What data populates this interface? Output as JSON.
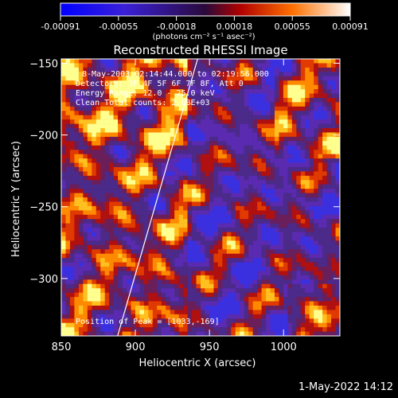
{
  "chart_data": {
    "type": "heatmap",
    "title": "Reconstructed RHESSI Image",
    "xlabel": "Heliocentric X (arcsec)",
    "ylabel": "Heliocentric Y (arcsec)",
    "xlim": [
      850,
      1038
    ],
    "ylim": [
      -340,
      -147
    ],
    "xticks": [
      "850",
      "900",
      "950",
      "1000"
    ],
    "yticks": [
      "-150",
      "-200",
      "-250",
      "-300"
    ],
    "colorbar": {
      "ticks": [
        "-0.00091",
        "-0.00055",
        "-0.00018",
        "0.00018",
        "0.00055",
        "0.00091"
      ],
      "label": "(photons cm⁻² s⁻¹ asec⁻²)",
      "min": -0.00091,
      "max": 0.00091
    },
    "annotations": {
      "time_range": "8-May-2003 02:14:44.000 to 02:19:56.000",
      "detectors": "Detectors: 3F 4F 5F 6F 7F 8F, Att 0",
      "energy": "Energy Range: 12.0 - 25.0 keV",
      "clean": "Clean    Total counts: 2.08E+03",
      "peak": "Position of Peak = [1033,-169]"
    },
    "limb_line": {
      "x": [
        888,
        942
      ],
      "y": [
        -340,
        -147
      ]
    },
    "colors": {
      "background": "#000000",
      "negative": "#2020ff",
      "neutral": "#4b2a8a",
      "positive_low": "#c80000",
      "positive_high": "#ffff80"
    }
  },
  "footer": {
    "date": "1-May-2022 14:12"
  }
}
